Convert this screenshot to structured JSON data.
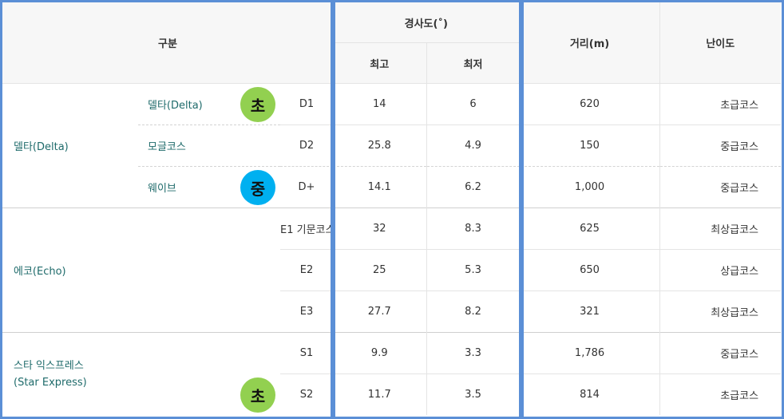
{
  "header": {
    "category": "구분",
    "slope": "경사도(˚)",
    "max": "최고",
    "min": "최저",
    "distance": "거리(m)",
    "difficulty": "난이도"
  },
  "groups": {
    "delta": "델타(Delta)",
    "echo": "에코(Echo)",
    "star_line1": "스타 익스프레스",
    "star_line2": "(Star Express)"
  },
  "subgroups": [
    "델타(Delta)",
    "모글코스",
    "웨이브"
  ],
  "badges": {
    "delta": "초",
    "wave": "중",
    "star": "초"
  },
  "colors": {
    "beginner_badge": "#92d050",
    "intermediate_badge": "#00b0f0",
    "frame": "#5b8fd6",
    "group_text": "#1f6b6b"
  },
  "rows": [
    {
      "code": "D1",
      "max": "14",
      "min": "6",
      "distance": "620",
      "difficulty": "초급코스"
    },
    {
      "code": "D2",
      "max": "25.8",
      "min": "4.9",
      "distance": "150",
      "difficulty": "중급코스"
    },
    {
      "code": "D+",
      "max": "14.1",
      "min": "6.2",
      "distance": "1,000",
      "difficulty": "중급코스"
    },
    {
      "code": "E1 기문코스",
      "max": "32",
      "min": "8.3",
      "distance": "625",
      "difficulty": "최상급코스"
    },
    {
      "code": "E2",
      "max": "25",
      "min": "5.3",
      "distance": "650",
      "difficulty": "상급코스"
    },
    {
      "code": "E3",
      "max": "27.7",
      "min": "8.2",
      "distance": "321",
      "difficulty": "최상급코스"
    },
    {
      "code": "S1",
      "max": "9.9",
      "min": "3.3",
      "distance": "1,786",
      "difficulty": "중급코스"
    },
    {
      "code": "S2",
      "max": "11.7",
      "min": "3.5",
      "distance": "814",
      "difficulty": "초급코스"
    }
  ]
}
